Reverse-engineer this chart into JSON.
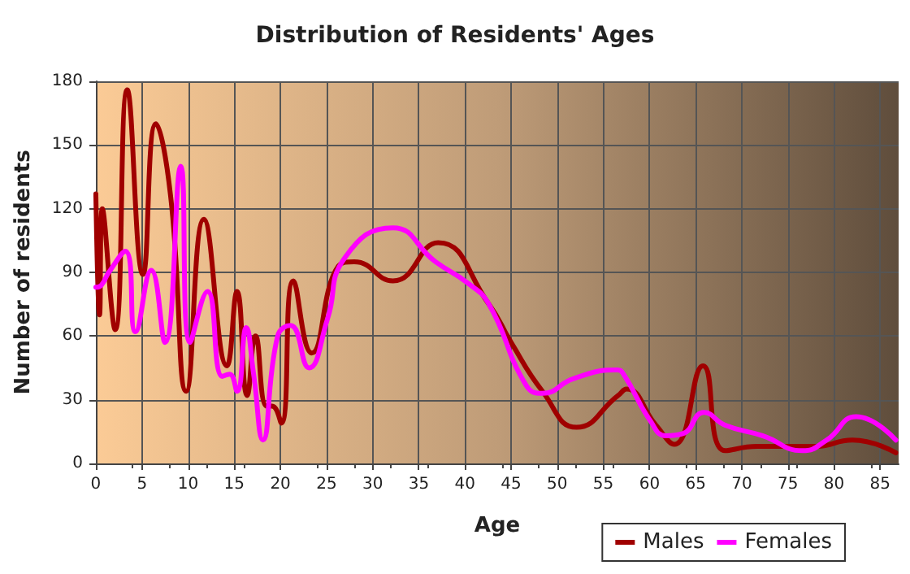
{
  "chart_data": {
    "type": "line",
    "title": "Distribution of Residents' Ages",
    "xlabel": "Age",
    "ylabel": "Number of residents",
    "xlim": [
      0,
      87
    ],
    "xticks": [
      0,
      5,
      10,
      15,
      20,
      25,
      30,
      35,
      40,
      45,
      50,
      55,
      60,
      65,
      70,
      75,
      80,
      85
    ],
    "ylim": [
      0,
      180
    ],
    "yticks": [
      0,
      30,
      60,
      90,
      120,
      150,
      180
    ],
    "grid": true,
    "legend": "bottom right",
    "marker": "none",
    "line_style": "solid",
    "series": [
      {
        "name": "Males",
        "color": "#a00000",
        "x": [
          0,
          0.4,
          0.7,
          2.1,
          3.4,
          5.1,
          6.5,
          8.1,
          9.8,
          11.7,
          14.2,
          15.3,
          16.4,
          17.3,
          18.5,
          19.1,
          20.1,
          21.4,
          23.4,
          26.3,
          28,
          32.2,
          37.1,
          42.6,
          45,
          48.4,
          52.1,
          56.6,
          57.5,
          60.7,
          62.7,
          65.8,
          68.2,
          71.7,
          78,
          82,
          86.7
        ],
        "values": [
          127,
          70,
          120,
          63,
          176,
          89,
          160,
          126,
          34,
          115,
          46,
          81,
          32,
          60,
          27,
          27,
          19,
          86,
          52,
          93,
          95,
          86,
          104,
          75,
          57,
          34,
          17,
          32,
          35,
          18,
          9,
          46,
          6,
          8,
          8,
          11,
          5
        ]
      },
      {
        "name": "Females",
        "color": "#ff00ff",
        "x": [
          0,
          0.6,
          1.4,
          3.2,
          4.3,
          6,
          7.5,
          9.2,
          10.2,
          12.1,
          13.7,
          14.5,
          15.3,
          16.3,
          17.1,
          18.1,
          19.7,
          21.1,
          23.1,
          25.1,
          27,
          32.2,
          36.8,
          40.3,
          42.6,
          46.6,
          48.4,
          51.8,
          56.5,
          57.2,
          60.1,
          61.8,
          63.6,
          65.9,
          68.2,
          72.3,
          76.6,
          79.2,
          82.4,
          86.7
        ],
        "values": [
          83,
          84,
          90,
          100,
          62,
          91,
          57,
          140,
          57,
          81,
          41,
          42,
          34,
          64,
          42,
          11,
          60,
          65,
          45,
          68,
          97,
          111,
          95,
          85,
          75,
          37,
          33,
          40,
          44,
          42,
          20,
          13,
          14,
          24,
          18,
          13,
          6,
          11,
          22,
          11
        ]
      }
    ]
  }
}
